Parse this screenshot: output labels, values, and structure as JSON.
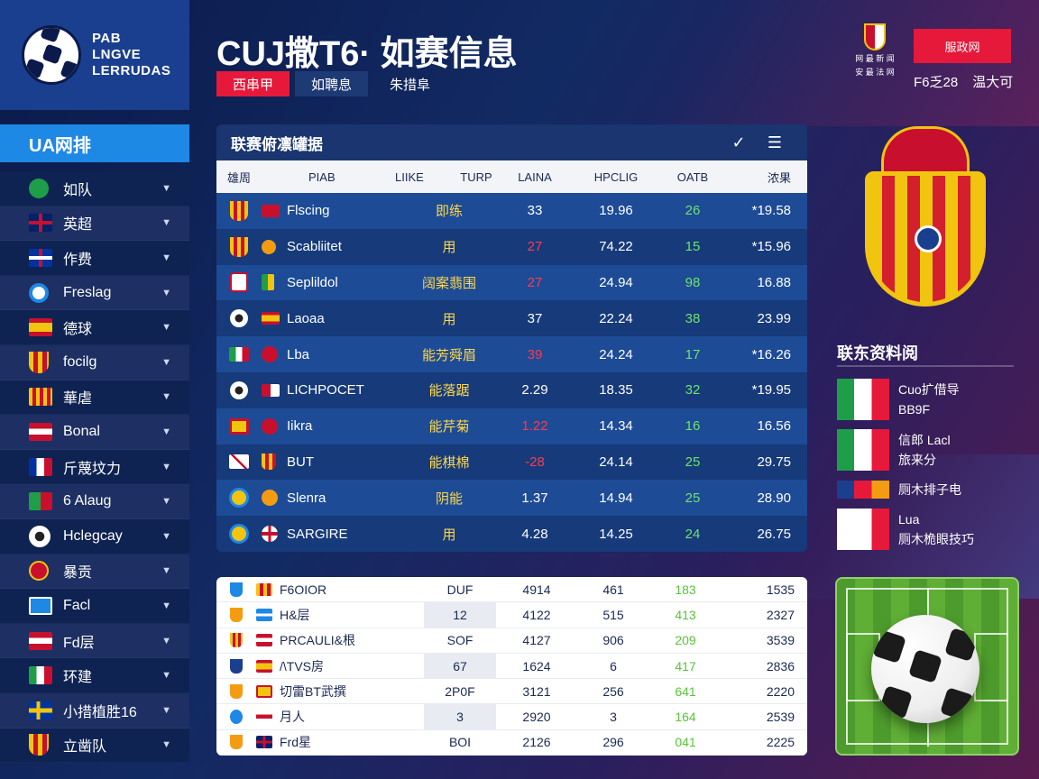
{
  "header": {
    "logo_text": [
      "PAB",
      "LNGVE",
      "LERRUDAS"
    ],
    "title": "CUJ撒T6· 如赛信息",
    "tabs": [
      {
        "label": "西串甲",
        "active": true
      },
      {
        "label": "如聘息",
        "active": false
      },
      {
        "label": "朱措阜",
        "active": false
      }
    ],
    "crest_caption": [
      "网 最 新 闻",
      "安 最 法 网"
    ],
    "red_button": "服政网",
    "info_left": "F6乏28",
    "info_right": "温大可"
  },
  "sidebar": {
    "title": "UA网排",
    "items": [
      {
        "label": "如队"
      },
      {
        "label": "英超"
      },
      {
        "label": "作费"
      },
      {
        "label": "Freslag"
      },
      {
        "label": "德球"
      },
      {
        "label": "focilg"
      },
      {
        "label": "華虐"
      },
      {
        "label": "Bonal"
      },
      {
        "label": "斤蔑坟力"
      },
      {
        "label": "6 Alaug"
      },
      {
        "label": "Hclegcay"
      },
      {
        "label": "暴贡"
      },
      {
        "label": "Facl"
      },
      {
        "label": "Fd层"
      },
      {
        "label": "环建"
      },
      {
        "label": "小措植胜16"
      },
      {
        "label": "立凿队"
      }
    ]
  },
  "main_table": {
    "title": "联赛俯凛罐据",
    "columns": [
      "雄周",
      "PIAB",
      "LIIKE",
      "TURP",
      "LAINA",
      "HPCLIG",
      "OATB",
      "浓果"
    ],
    "rows": [
      {
        "name": "Flscing",
        "turf": "即练",
        "n1": "33",
        "n2": "19.96",
        "n3": "26",
        "n4": "*19.58"
      },
      {
        "name": "Scabliitet",
        "turf": "用",
        "n1": "27",
        "n2": "74.22",
        "n3": "15",
        "n4": "*15.96"
      },
      {
        "name": "Seplildol",
        "turf": "阔案翡围",
        "n1": "27",
        "n2": "24.94",
        "n3": "98",
        "n4": "16.88"
      },
      {
        "name": "Laoaa",
        "turf": "用",
        "n1": "37",
        "n2": "22.24",
        "n3": "38",
        "n4": "23.99"
      },
      {
        "name": "Lba",
        "turf": "能芳舜眉",
        "n1": "39",
        "n2": "24.24",
        "n3": "17",
        "n4": "*16.26"
      },
      {
        "name": "LICHPOCET",
        "turf": "能落踞",
        "n1": "2.29",
        "n2": "18.35",
        "n3": "32",
        "n4": "*19.95"
      },
      {
        "name": "Iikra",
        "turf": "能芹菊",
        "n1": "1.22",
        "n2": "14.34",
        "n3": "16",
        "n4": "16.56"
      },
      {
        "name": "BUT",
        "turf": "能棋棉",
        "n1": "-28",
        "n2": "24.14",
        "n3": "25",
        "n4": "29.75"
      },
      {
        "name": "Slenra",
        "turf": "阴能",
        "n1": "1.37",
        "n2": "14.94",
        "n3": "25",
        "n4": "28.90"
      },
      {
        "name": "SARGIRE",
        "turf": "用",
        "n1": "4.28",
        "n2": "14.25",
        "n3": "24",
        "n4": "26.75"
      }
    ]
  },
  "lower_table": {
    "rows": [
      {
        "name": "F6OIOR",
        "a": "DUF",
        "b": "4914",
        "c": "461",
        "d": "183",
        "e": "1535"
      },
      {
        "name": "H&层",
        "a": "12",
        "b": "4122",
        "c": "515",
        "d": "413",
        "e": "2327"
      },
      {
        "name": "PRCAULI&根",
        "a": "SOF",
        "b": "4127",
        "c": "906",
        "d": "209",
        "e": "3539"
      },
      {
        "name": "/\\TVS房",
        "a": "67",
        "b": "1624",
        "c": "6",
        "d": "417",
        "e": "2836"
      },
      {
        "name": "切雷BT武撰",
        "a": "2P0F",
        "b": "3121",
        "c": "256",
        "d": "641",
        "e": "2220"
      },
      {
        "name": "月人",
        "a": "3",
        "b": "2920",
        "c": "3",
        "d": "164",
        "e": "2539"
      },
      {
        "name": "Frd星",
        "a": "BOI",
        "b": "2126",
        "c": "296",
        "d": "041",
        "e": "2225"
      }
    ]
  },
  "info": {
    "title": "联东资料阅",
    "items": [
      {
        "lines": [
          "Cuo扩借导",
          "BB9F"
        ]
      },
      {
        "lines": [
          "信郎 Lacl",
          "旅来分"
        ]
      },
      {
        "lines": [
          "厕木排子电"
        ]
      },
      {
        "lines": [
          "Lua",
          "厕木桅眼技巧"
        ]
      }
    ]
  },
  "colors": {
    "accent_red": "#e6193b",
    "accent_blue": "#1e88e5",
    "highlight_green": "#6de36d",
    "highlight_yellow": "#ffd84a"
  }
}
